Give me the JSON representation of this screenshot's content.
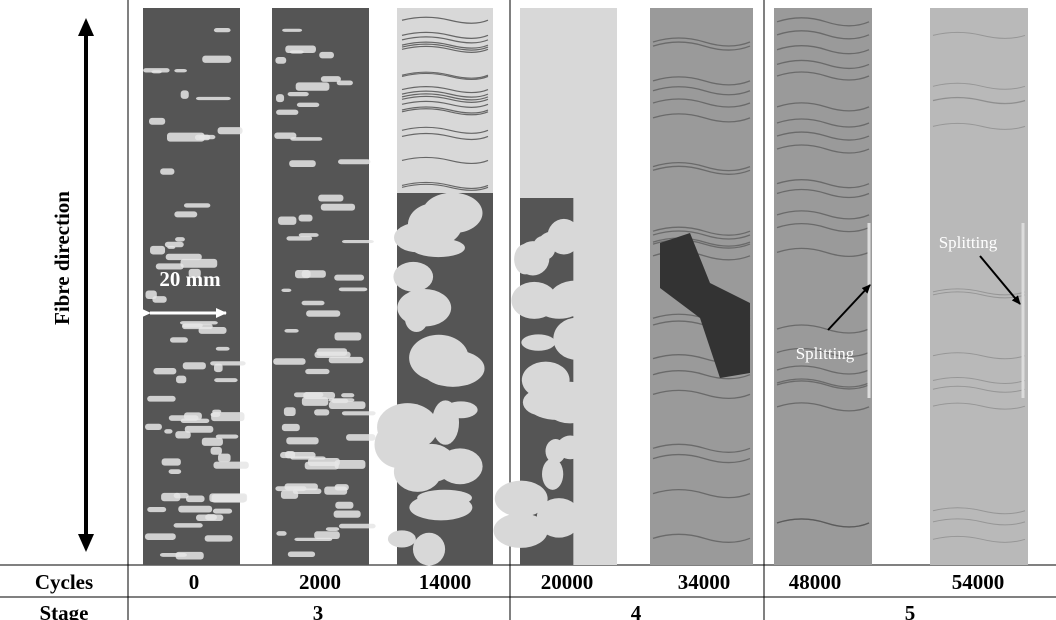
{
  "figure": {
    "axis_label": "Fibre direction",
    "scale_label": "20 mm",
    "annotations": [
      "Splitting",
      "Splitting"
    ],
    "table": {
      "row_label_cycles": "Cycles",
      "row_label_stage": "Stage",
      "cycles": [
        "0",
        "2000",
        "14000",
        "20000",
        "34000",
        "48000",
        "54000"
      ],
      "stages": [
        "3",
        "4",
        "5"
      ]
    },
    "specimens": [
      {
        "cycles": "0",
        "stage": "3",
        "tone": "dark"
      },
      {
        "cycles": "2000",
        "stage": "3",
        "tone": "dark"
      },
      {
        "cycles": "14000",
        "stage": "3",
        "tone": "mixed-light"
      },
      {
        "cycles": "20000",
        "stage": "4",
        "tone": "light-with-dark"
      },
      {
        "cycles": "34000",
        "stage": "4",
        "tone": "grey"
      },
      {
        "cycles": "48000",
        "stage": "5",
        "tone": "grey"
      },
      {
        "cycles": "54000",
        "stage": "5",
        "tone": "light-grey"
      }
    ],
    "colors": {
      "dark_specimen": "#555555",
      "light_patch": "#d8d8d8",
      "grey_specimen": "#9a9a9a",
      "light_grey_specimen": "#b9b9b9",
      "line": "#000000"
    }
  }
}
